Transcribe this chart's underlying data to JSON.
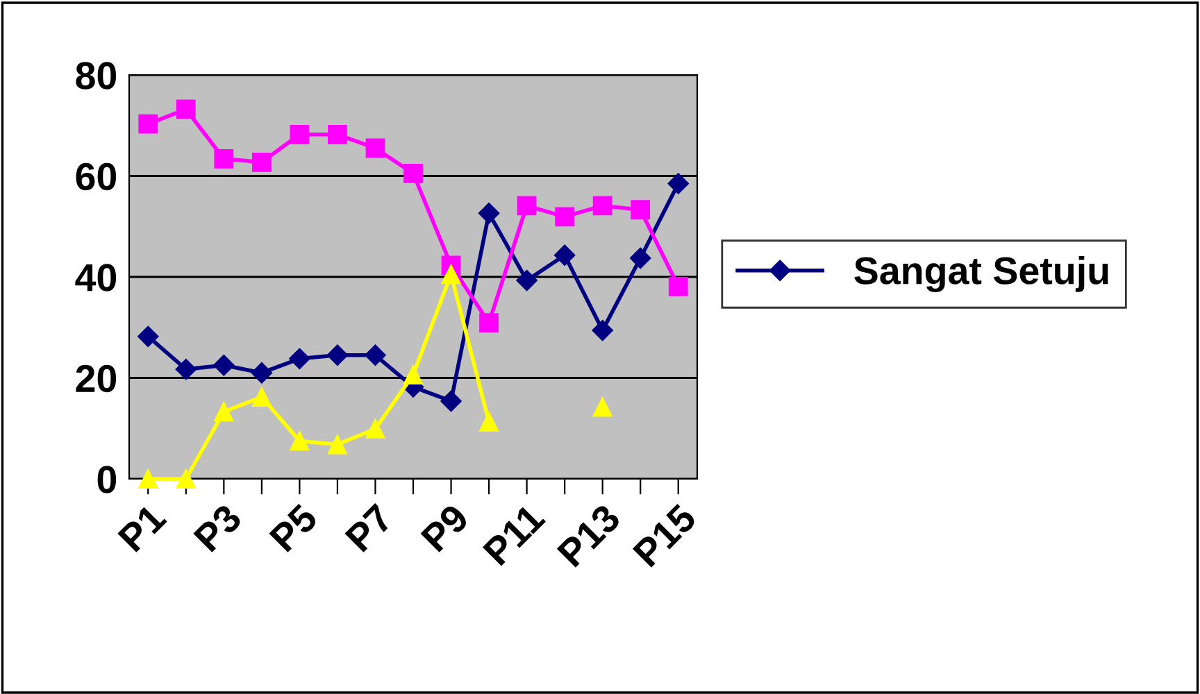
{
  "chart_data": {
    "type": "line",
    "categories": [
      "P1",
      null,
      "P3",
      null,
      "P5",
      null,
      "P7",
      null,
      "P9",
      null,
      "P11",
      null,
      "P13",
      null,
      "P15"
    ],
    "series": [
      {
        "name": "Sangat Setuju",
        "color": "#000080",
        "marker": "diamond",
        "values": [
          28.2,
          21.7,
          22.5,
          21,
          23.8,
          24.5,
          24.5,
          18.2,
          15.4,
          52.6,
          39.3,
          44.3,
          29.4,
          43.7,
          58.5
        ]
      },
      {
        "color": "#ff00ff",
        "marker": "square",
        "values": [
          70.3,
          73.2,
          63.4,
          62.7,
          68.2,
          68.2,
          65.5,
          60.5,
          42.3,
          30.9,
          54.1,
          51.9,
          54.1,
          53.3,
          38.1
        ]
      },
      {
        "color": "#ffff00",
        "marker": "triangle",
        "values": [
          0,
          0,
          13.3,
          16.2,
          7.5,
          6.8,
          9.9,
          20.6,
          40.5,
          11.3,
          null,
          null,
          14.2,
          null,
          null
        ]
      }
    ],
    "ylim": [
      0,
      80
    ],
    "yticks": [
      0,
      20,
      40,
      60,
      80
    ],
    "grid": "y",
    "legend": "right",
    "line_style": "solid"
  }
}
